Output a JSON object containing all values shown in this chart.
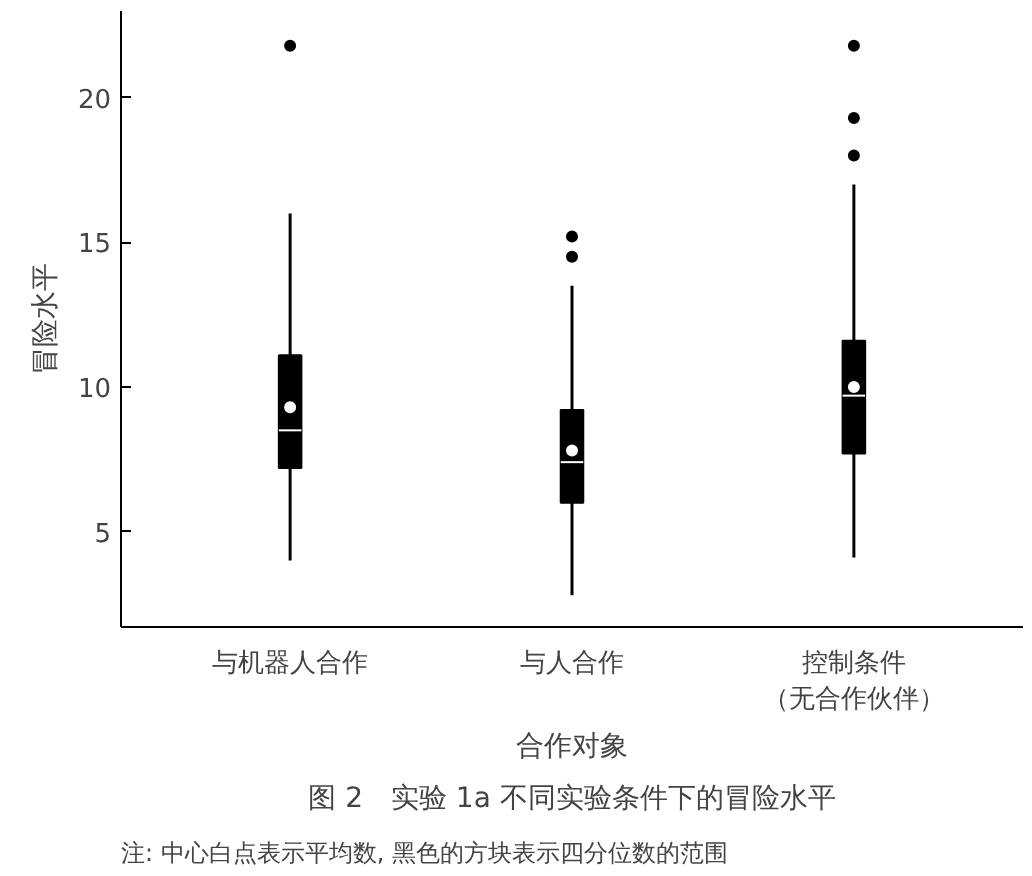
{
  "chart_data": {
    "type": "box",
    "title": "图 2　实验 1a 不同实验条件下的冒险水平",
    "xlabel": "合作对象",
    "ylabel": "冒险水平",
    "categories": [
      "与机器人合作",
      "与人合作",
      "控制条件（无合作伙伴）"
    ],
    "series": [
      {
        "color": "#000000",
        "boxes": [
          {
            "low": 4.0,
            "q1": 7.2,
            "median": 8.5,
            "q3": 11.1,
            "high": 16.0,
            "mean": 9.3,
            "outliers": [
              21.8
            ]
          },
          {
            "low": 2.8,
            "q1": 6.0,
            "median": 7.4,
            "q3": 9.2,
            "high": 13.5,
            "mean": 7.8,
            "outliers": [
              14.5,
              15.2
            ]
          },
          {
            "low": 4.1,
            "q1": 7.7,
            "median": 9.7,
            "q3": 11.6,
            "high": 17.0,
            "mean": 10.0,
            "outliers": [
              18.0,
              19.3,
              21.8
            ]
          }
        ]
      }
    ],
    "ylim": [
      1.7,
      23
    ],
    "yticks": [
      5,
      10,
      15,
      20
    ],
    "grid": false,
    "annotations": [
      "注: 中心白点表示平均数, 黑色的方块表示四分位数的范围"
    ]
  }
}
